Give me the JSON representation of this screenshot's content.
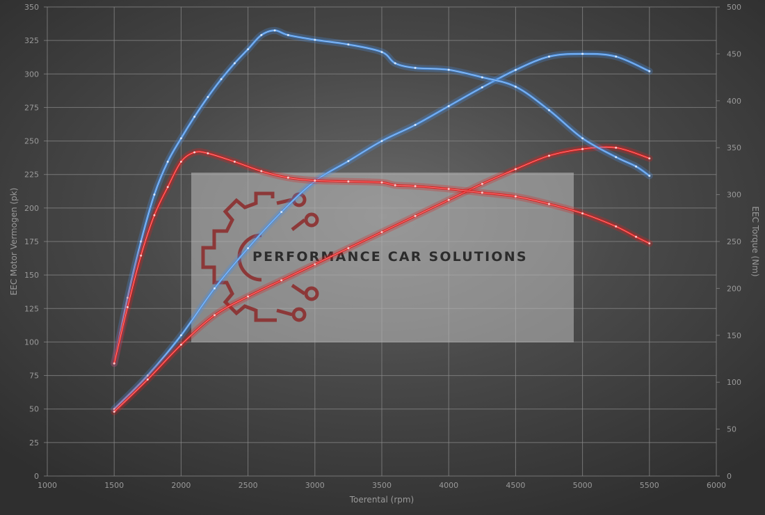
{
  "chart_data": {
    "type": "line",
    "xlabel": "Toerental (rpm)",
    "ylabel_left": "EEC Motor Vermogen (pk)",
    "ylabel_right": "EEC Torque (Nm)",
    "xlim": [
      1000,
      6000
    ],
    "ylim_left": [
      0,
      350
    ],
    "ylim_right": [
      0,
      500
    ],
    "x_ticks": [
      1000,
      1500,
      2000,
      2500,
      3000,
      3500,
      4000,
      4500,
      5000,
      5500,
      6000
    ],
    "y_left_ticks": [
      0,
      25,
      50,
      75,
      100,
      125,
      150,
      175,
      200,
      225,
      250,
      275,
      300,
      325,
      350
    ],
    "y_right_ticks": [
      0,
      50,
      100,
      150,
      200,
      250,
      300,
      350,
      400,
      450,
      500
    ],
    "grid": true,
    "colors": {
      "tuned": "#4a90e2",
      "stock": "#e02020"
    },
    "series": [
      {
        "axis": "left",
        "color": "tuned",
        "x": [
          1500,
          1750,
          2000,
          2250,
          2500,
          2750,
          3000,
          3250,
          3500,
          3750,
          4000,
          4250,
          4500,
          4750,
          5000,
          5250,
          5500
        ],
        "y": [
          50,
          75,
          105,
          140,
          170,
          197,
          220,
          235,
          250,
          262,
          276,
          290,
          303,
          313,
          315,
          313,
          302
        ]
      },
      {
        "axis": "left",
        "color": "stock",
        "x": [
          1500,
          1750,
          2000,
          2250,
          2500,
          2750,
          3000,
          3250,
          3500,
          3750,
          4000,
          4250,
          4500,
          4750,
          5000,
          5250,
          5500
        ],
        "y": [
          48,
          72,
          98,
          120,
          134,
          146,
          158,
          170,
          182,
          194,
          206,
          218,
          229,
          239,
          244,
          245,
          237
        ]
      },
      {
        "axis": "right",
        "color": "tuned",
        "x": [
          1500,
          1600,
          1700,
          1800,
          1900,
          2000,
          2100,
          2200,
          2300,
          2400,
          2500,
          2600,
          2700,
          2800,
          3000,
          3250,
          3500,
          3600,
          3750,
          4000,
          4250,
          4500,
          4750,
          5000,
          5250,
          5400,
          5500
        ],
        "y": [
          120,
          190,
          250,
          300,
          335,
          360,
          383,
          404,
          423,
          440,
          455,
          470,
          475,
          470,
          465,
          460,
          452,
          440,
          435,
          433,
          425,
          415,
          390,
          360,
          340,
          330,
          320
        ]
      },
      {
        "axis": "right",
        "color": "stock",
        "x": [
          1500,
          1600,
          1700,
          1800,
          1900,
          2000,
          2100,
          2200,
          2400,
          2600,
          2800,
          3000,
          3250,
          3500,
          3600,
          3750,
          4000,
          4250,
          4500,
          4750,
          5000,
          5250,
          5400,
          5500
        ],
        "y": [
          120,
          180,
          235,
          278,
          308,
          335,
          345,
          344,
          335,
          325,
          318,
          315,
          314,
          313,
          310,
          309,
          306,
          302,
          298,
          290,
          280,
          266,
          255,
          248
        ]
      }
    ]
  },
  "watermark": {
    "text": "PERFORMANCE CAR SOLUTIONS"
  }
}
